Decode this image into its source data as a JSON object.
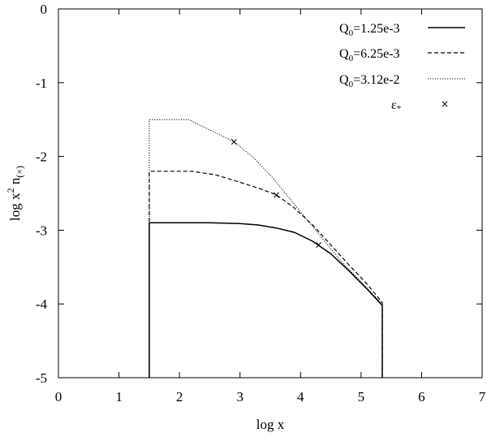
{
  "chart_data": {
    "type": "line",
    "title": "",
    "xlabel": "log x",
    "ylabel": "log x",
    "ylabel_sup": "2",
    "ylabel_tail": " n",
    "ylabel_sub": "(×)",
    "xlim": [
      0,
      7
    ],
    "ylim": [
      -5,
      0
    ],
    "xticks": [
      0,
      1,
      2,
      3,
      4,
      5,
      6,
      7
    ],
    "yticks": [
      0,
      -1,
      -2,
      -3,
      -4,
      -5
    ],
    "grid": false,
    "legend_position": "top-right",
    "series": [
      {
        "name": "Q",
        "name_sub": "0",
        "name_tail": "=1.25e-3",
        "style": "solid",
        "x": [
          1.5,
          1.5,
          2.0,
          2.5,
          3.0,
          3.3,
          3.6,
          3.9,
          4.2,
          4.5,
          4.8,
          5.1,
          5.35,
          5.35
        ],
        "y": [
          -5,
          -2.9,
          -2.9,
          -2.9,
          -2.91,
          -2.93,
          -2.97,
          -3.03,
          -3.15,
          -3.32,
          -3.55,
          -3.8,
          -4.02,
          -5
        ]
      },
      {
        "name": "Q",
        "name_sub": "0",
        "name_tail": "=6.25e-3",
        "style": "dashed",
        "x": [
          1.5,
          1.5,
          2.0,
          2.2,
          2.6,
          3.0,
          3.3,
          3.6,
          3.9,
          4.2,
          4.5,
          4.8,
          5.1,
          5.35,
          5.35
        ],
        "y": [
          -5,
          -2.2,
          -2.2,
          -2.2,
          -2.25,
          -2.35,
          -2.43,
          -2.52,
          -2.7,
          -2.93,
          -3.2,
          -3.47,
          -3.73,
          -3.98,
          -5
        ]
      },
      {
        "name": "Q",
        "name_sub": "0",
        "name_tail": "=3.12e-2",
        "style": "dotted",
        "x": [
          1.5,
          1.5,
          2.15,
          2.4,
          2.7,
          2.9,
          3.2,
          3.5,
          3.8,
          4.1,
          4.4,
          4.7,
          5.0,
          5.35,
          5.35
        ],
        "y": [
          -5,
          -1.5,
          -1.5,
          -1.6,
          -1.72,
          -1.8,
          -2.0,
          -2.25,
          -2.55,
          -2.85,
          -3.15,
          -3.45,
          -3.7,
          -4.0,
          -5
        ]
      }
    ],
    "markers": {
      "name": "ε",
      "name_sub": "*",
      "symbol": "×",
      "points": [
        {
          "x": 4.3,
          "y": -3.2
        },
        {
          "x": 3.6,
          "y": -2.52
        },
        {
          "x": 2.9,
          "y": -1.8
        }
      ]
    }
  }
}
